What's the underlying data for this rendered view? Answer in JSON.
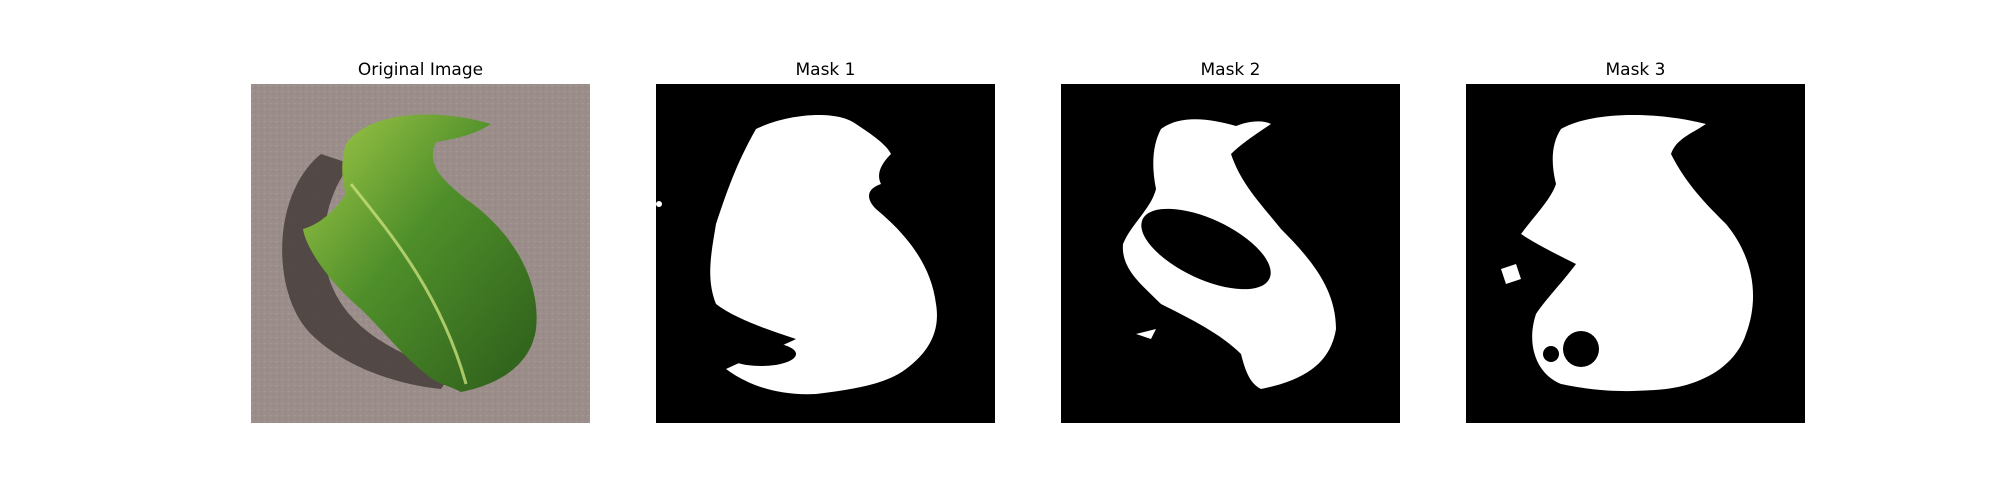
{
  "panels": [
    {
      "title": "Original Image"
    },
    {
      "title": "Mask 1"
    },
    {
      "title": "Mask 2"
    },
    {
      "title": "Mask 3"
    }
  ],
  "colors": {
    "mask_background": "#000000",
    "mask_foreground": "#ffffff",
    "photo_background": "#9a8c88",
    "leaf_light": "#8fbf3a",
    "leaf_dark": "#2f6a1e"
  }
}
